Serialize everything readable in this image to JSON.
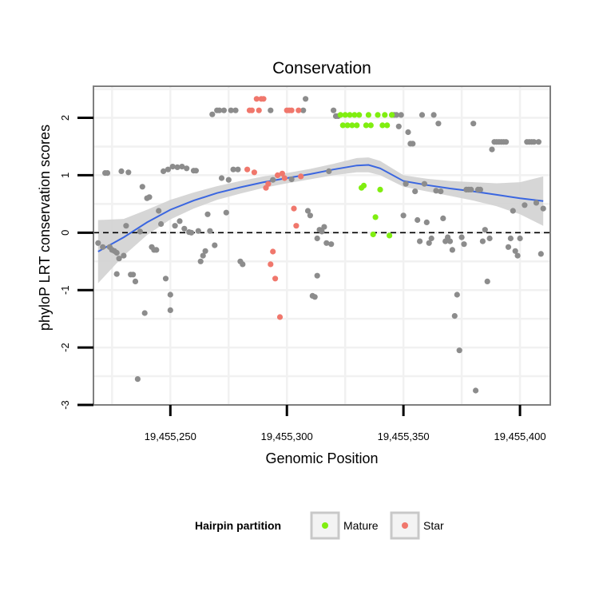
{
  "chart_data": {
    "type": "scatter",
    "title": "Conservation",
    "xlabel": "Genomic Position",
    "ylabel": "phyloP LRT conservation scores",
    "xlim": [
      19455217,
      19455413
    ],
    "ylim": [
      -3,
      2.55
    ],
    "x_ticks": [
      19455250,
      19455300,
      19455350,
      19455400
    ],
    "x_tick_labels": [
      "19,455,250",
      "19,455,300",
      "19,455,350",
      "19,455,400"
    ],
    "y_ticks": [
      -3,
      -2,
      -1,
      0,
      1,
      2
    ],
    "y_tick_labels": [
      "-3",
      "-2",
      "-1",
      "0",
      "1",
      "2"
    ],
    "reference_line": {
      "y": 0,
      "style": "dashed"
    },
    "grid": true,
    "legend": {
      "title": "Hairpin partition",
      "position": "bottom",
      "entries": [
        {
          "label": "Mature",
          "color": "#80ee10"
        },
        {
          "label": "Star",
          "color": "#f0776c"
        }
      ]
    },
    "colors": {
      "other": "#8c8c8c",
      "mature": "#80ee10",
      "star": "#f0776c",
      "smooth_line": "#3a66e0",
      "ribbon": "#d2d2d2"
    },
    "series": [
      {
        "group": "other",
        "points": [
          [
            19455219,
            -0.18
          ],
          [
            19455221,
            -0.25
          ],
          [
            19455222,
            1.04
          ],
          [
            19455223,
            1.04
          ],
          [
            19455224,
            -0.25
          ],
          [
            19455225,
            -0.3
          ],
          [
            19455226,
            -0.32
          ],
          [
            19455227,
            -0.35
          ],
          [
            19455227,
            -0.72
          ],
          [
            19455228,
            -0.45
          ],
          [
            19455229,
            1.07
          ],
          [
            19455230,
            -0.4
          ],
          [
            19455231,
            0.12
          ],
          [
            19455232,
            1.05
          ],
          [
            19455233,
            -0.73
          ],
          [
            19455234,
            -0.73
          ],
          [
            19455235,
            -0.85
          ],
          [
            19455236,
            -2.55
          ],
          [
            19455237,
            0.02
          ],
          [
            19455238,
            0.8
          ],
          [
            19455239,
            -1.4
          ],
          [
            19455240,
            0.6
          ],
          [
            19455241,
            0.62
          ],
          [
            19455242,
            -0.25
          ],
          [
            19455243,
            -0.3
          ],
          [
            19455244,
            -0.3
          ],
          [
            19455245,
            0.38
          ],
          [
            19455246,
            0.15
          ],
          [
            19455247,
            1.07
          ],
          [
            19455248,
            -0.8
          ],
          [
            19455249,
            1.1
          ],
          [
            19455250,
            -1.08
          ],
          [
            19455250,
            -1.35
          ],
          [
            19455251,
            1.15
          ],
          [
            19455252,
            0.12
          ],
          [
            19455253,
            1.14
          ],
          [
            19455254,
            0.2
          ],
          [
            19455255,
            1.15
          ],
          [
            19455256,
            0.07
          ],
          [
            19455257,
            1.12
          ],
          [
            19455258,
            0.01
          ],
          [
            19455259,
            0.0
          ],
          [
            19455260,
            1.08
          ],
          [
            19455261,
            1.08
          ],
          [
            19455262,
            0.03
          ],
          [
            19455263,
            -0.5
          ],
          [
            19455264,
            -0.4
          ],
          [
            19455265,
            -0.32
          ],
          [
            19455266,
            0.32
          ],
          [
            19455267,
            0.03
          ],
          [
            19455268,
            2.06
          ],
          [
            19455269,
            -0.22
          ],
          [
            19455270,
            2.13
          ],
          [
            19455271,
            2.13
          ],
          [
            19455272,
            0.95
          ],
          [
            19455273,
            2.13
          ],
          [
            19455274,
            0.35
          ],
          [
            19455275,
            0.92
          ],
          [
            19455276,
            2.13
          ],
          [
            19455277,
            1.1
          ],
          [
            19455278,
            2.13
          ],
          [
            19455279,
            1.1
          ],
          [
            19455280,
            -0.5
          ],
          [
            19455281,
            -0.55
          ],
          [
            19455293,
            2.13
          ],
          [
            19455294,
            0.92
          ],
          [
            19455302,
            0.93
          ],
          [
            19455307,
            2.13
          ],
          [
            19455308,
            2.33
          ],
          [
            19455309,
            0.38
          ],
          [
            19455310,
            0.3
          ],
          [
            19455311,
            -1.1
          ],
          [
            19455312,
            -1.12
          ],
          [
            19455313,
            -0.1
          ],
          [
            19455313,
            -0.75
          ],
          [
            19455314,
            0.05
          ],
          [
            19455315,
            0.02
          ],
          [
            19455316,
            0.1
          ],
          [
            19455317,
            -0.18
          ],
          [
            19455318,
            1.07
          ],
          [
            19455319,
            -0.2
          ],
          [
            19455320,
            2.13
          ],
          [
            19455321,
            2.03
          ],
          [
            19455322,
            2.03
          ],
          [
            19455345,
            2.05
          ],
          [
            19455346,
            2.05
          ],
          [
            19455347,
            2.05
          ],
          [
            19455348,
            1.85
          ],
          [
            19455349,
            2.05
          ],
          [
            19455350,
            0.3
          ],
          [
            19455351,
            0.85
          ],
          [
            19455352,
            1.75
          ],
          [
            19455353,
            1.55
          ],
          [
            19455354,
            1.55
          ],
          [
            19455355,
            0.72
          ],
          [
            19455356,
            0.22
          ],
          [
            19455357,
            -0.15
          ],
          [
            19455358,
            2.05
          ],
          [
            19455359,
            0.85
          ],
          [
            19455360,
            0.18
          ],
          [
            19455361,
            -0.18
          ],
          [
            19455362,
            -0.1
          ],
          [
            19455363,
            2.05
          ],
          [
            19455364,
            0.73
          ],
          [
            19455365,
            1.9
          ],
          [
            19455366,
            0.72
          ],
          [
            19455367,
            0.25
          ],
          [
            19455368,
            -0.15
          ],
          [
            19455369,
            -0.08
          ],
          [
            19455370,
            -0.15
          ],
          [
            19455371,
            -0.3
          ],
          [
            19455372,
            -1.45
          ],
          [
            19455373,
            -1.08
          ],
          [
            19455374,
            -2.05
          ],
          [
            19455375,
            -0.08
          ],
          [
            19455376,
            -0.2
          ],
          [
            19455377,
            0.75
          ],
          [
            19455378,
            0.75
          ],
          [
            19455379,
            0.75
          ],
          [
            19455380,
            1.9
          ],
          [
            19455381,
            -2.75
          ],
          [
            19455382,
            0.75
          ],
          [
            19455383,
            0.75
          ],
          [
            19455384,
            -0.15
          ],
          [
            19455385,
            0.05
          ],
          [
            19455386,
            -0.85
          ],
          [
            19455387,
            -0.1
          ],
          [
            19455388,
            1.45
          ],
          [
            19455389,
            1.58
          ],
          [
            19455390,
            1.58
          ],
          [
            19455391,
            1.58
          ],
          [
            19455392,
            1.58
          ],
          [
            19455393,
            1.58
          ],
          [
            19455394,
            1.58
          ],
          [
            19455395,
            -0.25
          ],
          [
            19455396,
            -0.1
          ],
          [
            19455397,
            0.38
          ],
          [
            19455398,
            -0.32
          ],
          [
            19455399,
            -0.4
          ],
          [
            19455400,
            -0.1
          ],
          [
            19455402,
            0.48
          ],
          [
            19455403,
            1.58
          ],
          [
            19455404,
            1.58
          ],
          [
            19455405,
            1.58
          ],
          [
            19455406,
            1.58
          ],
          [
            19455407,
            0.52
          ],
          [
            19455408,
            1.58
          ],
          [
            19455409,
            -0.37
          ],
          [
            19455410,
            0.42
          ]
        ]
      },
      {
        "group": "star",
        "points": [
          [
            19455283,
            1.1
          ],
          [
            19455284,
            2.13
          ],
          [
            19455285,
            2.13
          ],
          [
            19455286,
            1.05
          ],
          [
            19455287,
            2.33
          ],
          [
            19455288,
            2.13
          ],
          [
            19455289,
            2.33
          ],
          [
            19455290,
            2.33
          ],
          [
            19455291,
            0.78
          ],
          [
            19455292,
            0.85
          ],
          [
            19455293,
            -0.55
          ],
          [
            19455294,
            -0.33
          ],
          [
            19455295,
            -0.8
          ],
          [
            19455296,
            1.0
          ],
          [
            19455297,
            -1.47
          ],
          [
            19455298,
            1.03
          ],
          [
            19455299,
            0.95
          ],
          [
            19455300,
            2.13
          ],
          [
            19455301,
            2.13
          ],
          [
            19455302,
            2.13
          ],
          [
            19455303,
            0.42
          ],
          [
            19455304,
            0.12
          ],
          [
            19455305,
            2.13
          ],
          [
            19455306,
            0.98
          ]
        ]
      },
      {
        "group": "mature",
        "points": [
          [
            19455323,
            2.05
          ],
          [
            19455324,
            1.87
          ],
          [
            19455325,
            2.05
          ],
          [
            19455326,
            1.87
          ],
          [
            19455327,
            2.05
          ],
          [
            19455328,
            1.87
          ],
          [
            19455329,
            2.05
          ],
          [
            19455330,
            1.87
          ],
          [
            19455331,
            2.05
          ],
          [
            19455332,
            0.78
          ],
          [
            19455333,
            0.82
          ],
          [
            19455334,
            1.87
          ],
          [
            19455335,
            2.05
          ],
          [
            19455336,
            1.87
          ],
          [
            19455337,
            -0.03
          ],
          [
            19455338,
            0.27
          ],
          [
            19455339,
            2.05
          ],
          [
            19455340,
            0.75
          ],
          [
            19455341,
            1.87
          ],
          [
            19455342,
            2.05
          ],
          [
            19455343,
            1.87
          ],
          [
            19455344,
            -0.05
          ],
          [
            19455345,
            2.05
          ]
        ]
      }
    ],
    "smooth": {
      "x": [
        19455219,
        19455230,
        19455240,
        19455250,
        19455260,
        19455270,
        19455280,
        19455290,
        19455300,
        19455310,
        19455320,
        19455330,
        19455335,
        19455340,
        19455350,
        19455360,
        19455370,
        19455380,
        19455390,
        19455400,
        19455410
      ],
      "y": [
        -0.33,
        -0.08,
        0.18,
        0.4,
        0.56,
        0.69,
        0.79,
        0.88,
        0.95,
        1.02,
        1.1,
        1.17,
        1.18,
        1.12,
        0.9,
        0.83,
        0.77,
        0.72,
        0.66,
        0.6,
        0.55
      ],
      "ribbon_low": [
        -0.88,
        -0.4,
        -0.04,
        0.23,
        0.42,
        0.57,
        0.68,
        0.78,
        0.86,
        0.93,
        1.0,
        1.05,
        1.05,
        1.0,
        0.8,
        0.72,
        0.64,
        0.56,
        0.46,
        0.32,
        0.12
      ],
      "ribbon_high": [
        0.22,
        0.24,
        0.4,
        0.57,
        0.7,
        0.81,
        0.9,
        0.98,
        1.04,
        1.11,
        1.2,
        1.3,
        1.31,
        1.25,
        1.0,
        0.94,
        0.9,
        0.88,
        0.86,
        0.88,
        0.98
      ]
    }
  }
}
